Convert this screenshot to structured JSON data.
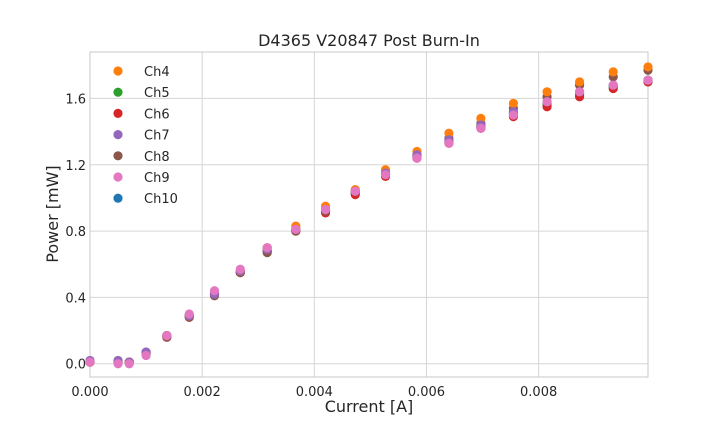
{
  "chart_data": {
    "type": "scatter",
    "title": "D4365 V20847 Post Burn-In",
    "xlabel": "Current [A]",
    "ylabel": "Power [mW]",
    "xlim": [
      0.0,
      0.00995
    ],
    "ylim": [
      -0.08,
      1.88
    ],
    "xticks": [
      "0.000",
      "0.002",
      "0.004",
      "0.006",
      "0.008"
    ],
    "yticks": [
      "0.0",
      "0.4",
      "0.8",
      "1.2",
      "1.6"
    ],
    "grid": true,
    "legend_position": "top-left",
    "x": [
      0.0,
      0.0005,
      0.0007,
      0.001,
      0.00137,
      0.00177,
      0.00222,
      0.00268,
      0.00316,
      0.00367,
      0.0042,
      0.00473,
      0.00527,
      0.00583,
      0.0064,
      0.00697,
      0.00755,
      0.00815,
      0.00873,
      0.00933,
      0.00995
    ],
    "series": [
      {
        "name": "Ch4",
        "color": "#ff7f0e",
        "values": [
          0.01,
          0.01,
          0.01,
          0.06,
          0.17,
          0.29,
          0.43,
          0.56,
          0.7,
          0.83,
          0.95,
          1.05,
          1.17,
          1.28,
          1.39,
          1.48,
          1.57,
          1.64,
          1.7,
          1.76,
          1.79
        ]
      },
      {
        "name": "Ch5",
        "color": "#2ca02c",
        "values": [
          0.01,
          0.01,
          0.01,
          0.06,
          0.17,
          0.29,
          0.42,
          0.55,
          0.68,
          0.81,
          0.92,
          1.03,
          1.14,
          1.25,
          1.34,
          1.43,
          1.51,
          1.56,
          1.62,
          1.67,
          1.71
        ]
      },
      {
        "name": "Ch6",
        "color": "#d62728",
        "values": [
          0.01,
          0.01,
          0.01,
          0.06,
          0.16,
          0.28,
          0.42,
          0.55,
          0.68,
          0.8,
          0.91,
          1.02,
          1.13,
          1.24,
          1.33,
          1.42,
          1.49,
          1.55,
          1.61,
          1.66,
          1.7
        ]
      },
      {
        "name": "Ch7",
        "color": "#9467bd",
        "values": [
          0.02,
          0.02,
          0.01,
          0.07,
          0.17,
          0.29,
          0.42,
          0.56,
          0.69,
          0.81,
          0.93,
          1.04,
          1.15,
          1.26,
          1.35,
          1.44,
          1.52,
          1.58,
          1.64,
          1.68,
          1.71
        ]
      },
      {
        "name": "Ch8",
        "color": "#8c564b",
        "values": [
          0.01,
          0.01,
          0.01,
          0.06,
          0.16,
          0.28,
          0.41,
          0.55,
          0.67,
          0.8,
          0.92,
          1.04,
          1.15,
          1.26,
          1.36,
          1.45,
          1.54,
          1.61,
          1.68,
          1.73,
          1.77
        ]
      },
      {
        "name": "Ch9",
        "color": "#e377c2",
        "values": [
          0.01,
          0.0,
          0.0,
          0.05,
          0.17,
          0.3,
          0.44,
          0.57,
          0.7,
          0.81,
          0.93,
          1.04,
          1.14,
          1.24,
          1.33,
          1.42,
          1.5,
          1.58,
          1.64,
          1.68,
          1.71
        ]
      },
      {
        "name": "Ch10",
        "color": "#1f77b4",
        "values": [
          0.01,
          0.01,
          0.01,
          0.07,
          0.17,
          0.29,
          0.42,
          0.55,
          0.68,
          0.81,
          0.92,
          1.03,
          1.14,
          1.25,
          1.34,
          1.43,
          1.51,
          1.57,
          1.63,
          1.67,
          1.7
        ]
      }
    ],
    "draw_order": [
      "Ch10",
      "Ch5",
      "Ch6",
      "Ch8",
      "Ch4",
      "Ch7",
      "Ch9"
    ]
  }
}
